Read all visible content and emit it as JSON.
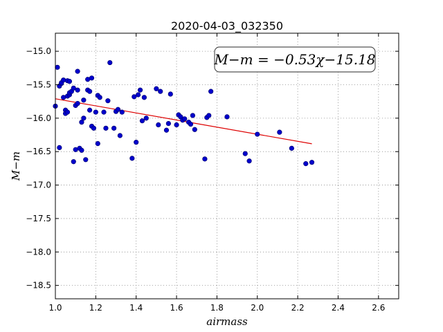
{
  "chart_data": {
    "type": "scatter",
    "title": "2020-04-03_032350",
    "xlabel": "airmass",
    "ylabel": "M−m",
    "xlim": [
      1.0,
      2.7
    ],
    "ylim": [
      -18.7,
      -14.73
    ],
    "y_inverted": true,
    "grid": true,
    "x_ticks": [
      1.0,
      1.2,
      1.4,
      1.6,
      1.8,
      2.0,
      2.2,
      2.4,
      2.6
    ],
    "x_tick_labels": [
      "1.0",
      "1.2",
      "1.4",
      "1.6",
      "1.8",
      "2.0",
      "2.2",
      "2.4",
      "2.6"
    ],
    "y_ticks": [
      -15.0,
      -15.5,
      -16.0,
      -16.5,
      -17.0,
      -17.5,
      -18.0,
      -18.5
    ],
    "y_tick_labels": [
      "−15.0",
      "−15.5",
      "−16.0",
      "−16.5",
      "−17.0",
      "−17.5",
      "−18.0",
      "−18.5"
    ],
    "annotation": "M−m = −0.53χ−15.18",
    "annotation_position": "top-right",
    "colors": {
      "points": "#0000cc",
      "fit": "#dd0000",
      "grid": "#888888"
    },
    "fit": {
      "slope": -0.53,
      "intercept": -15.18,
      "x_range": [
        1.0,
        2.27
      ]
    },
    "series": [
      {
        "x": [
          1.0,
          1.01,
          1.02,
          1.02,
          1.03,
          1.03,
          1.04,
          1.04,
          1.05,
          1.05,
          1.06,
          1.06,
          1.06,
          1.07,
          1.07,
          1.07,
          1.08,
          1.09,
          1.09,
          1.1,
          1.1,
          1.11,
          1.11,
          1.11,
          1.12,
          1.13,
          1.13,
          1.14,
          1.14,
          1.15,
          1.16,
          1.16,
          1.17,
          1.17,
          1.18,
          1.18,
          1.19,
          1.2,
          1.21,
          1.21,
          1.22,
          1.24,
          1.25,
          1.26,
          1.27,
          1.29,
          1.3,
          1.31,
          1.32,
          1.33,
          1.38,
          1.39,
          1.4,
          1.41,
          1.42,
          1.43,
          1.44,
          1.45,
          1.5,
          1.51,
          1.52,
          1.55,
          1.56,
          1.57,
          1.6,
          1.61,
          1.62,
          1.63,
          1.64,
          1.66,
          1.67,
          1.68,
          1.69,
          1.74,
          1.75,
          1.76,
          1.77,
          1.85,
          1.94,
          1.96,
          2.0,
          2.11,
          2.17,
          2.24,
          2.27
        ],
        "y": [
          -15.82,
          -15.24,
          -16.44,
          -15.52,
          -15.48,
          -15.47,
          -15.43,
          -15.69,
          -15.88,
          -15.93,
          -15.67,
          -15.44,
          -15.91,
          -15.45,
          -15.65,
          -15.62,
          -15.6,
          -15.55,
          -16.65,
          -16.47,
          -15.81,
          -15.58,
          -15.3,
          -15.78,
          -16.45,
          -16.06,
          -16.48,
          -16.0,
          -15.73,
          -16.62,
          -15.58,
          -15.42,
          -15.88,
          -15.6,
          -16.12,
          -15.4,
          -16.15,
          -15.91,
          -15.66,
          -16.38,
          -15.69,
          -15.91,
          -16.15,
          -15.74,
          -15.17,
          -16.15,
          -15.9,
          -15.87,
          -16.26,
          -15.91,
          -16.6,
          -15.68,
          -16.36,
          -15.65,
          -15.58,
          -16.04,
          -15.69,
          -16.0,
          -15.56,
          -16.1,
          -15.6,
          -16.18,
          -16.08,
          -15.64,
          -16.1,
          -15.95,
          -15.98,
          -16.03,
          -16.01,
          -16.06,
          -16.09,
          -15.96,
          -16.17,
          -16.61,
          -15.99,
          -15.96,
          -15.6,
          -15.98,
          -16.53,
          -16.64,
          -16.24,
          -16.21,
          -16.45,
          -16.68,
          -16.66
        ]
      }
    ]
  }
}
